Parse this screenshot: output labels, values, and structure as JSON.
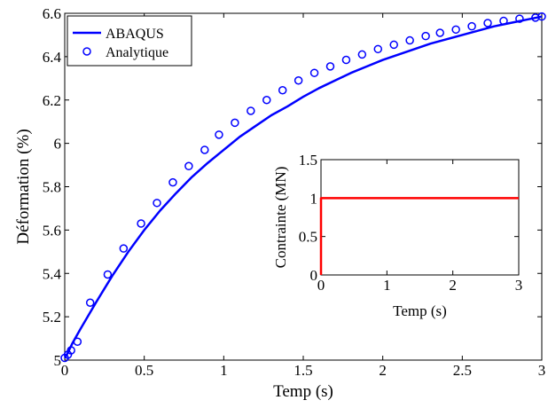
{
  "chart_data": [
    {
      "type": "line",
      "xlabel": "Temp (s)",
      "ylabel": "Déformation (%)",
      "xlim": [
        0,
        3
      ],
      "ylim": [
        5,
        6.6
      ],
      "xticks": [
        "0",
        "0.5",
        "1",
        "1.5",
        "2",
        "2.5",
        "3"
      ],
      "yticks": [
        "5",
        "5.2",
        "5.4",
        "5.6",
        "5.8",
        "6",
        "6.2",
        "6.4",
        "6.6"
      ],
      "legend_position": "top-left",
      "series": [
        {
          "name": "ABAQUS",
          "style": "line",
          "color": "#0000ff",
          "x": [
            0,
            0.01,
            0.02,
            0.05,
            0.1,
            0.2,
            0.3,
            0.4,
            0.5,
            0.6,
            0.7,
            0.8,
            0.9,
            1.0,
            1.1,
            1.2,
            1.3,
            1.4,
            1.5,
            1.6,
            1.7,
            1.8,
            1.9,
            2.0,
            2.1,
            2.2,
            2.3,
            2.4,
            2.5,
            2.6,
            2.7,
            2.8,
            2.9,
            3.0
          ],
          "y": [
            5.01,
            5.02,
            5.035,
            5.08,
            5.145,
            5.27,
            5.39,
            5.5,
            5.6,
            5.69,
            5.77,
            5.845,
            5.91,
            5.97,
            6.03,
            6.08,
            6.13,
            6.17,
            6.215,
            6.255,
            6.29,
            6.325,
            6.355,
            6.385,
            6.41,
            6.435,
            6.46,
            6.48,
            6.5,
            6.52,
            6.54,
            6.555,
            6.57,
            6.585
          ]
        },
        {
          "name": "Analytique",
          "style": "markers",
          "marker": "circle",
          "color": "#0000ff",
          "x": [
            0,
            0.02,
            0.04,
            0.08,
            0.16,
            0.27,
            0.37,
            0.48,
            0.58,
            0.68,
            0.78,
            0.88,
            0.97,
            1.07,
            1.17,
            1.27,
            1.37,
            1.47,
            1.57,
            1.67,
            1.77,
            1.87,
            1.97,
            2.07,
            2.17,
            2.27,
            2.36,
            2.46,
            2.56,
            2.66,
            2.76,
            2.86,
            2.96,
            3.0
          ],
          "y": [
            5.01,
            5.025,
            5.045,
            5.085,
            5.265,
            5.395,
            5.515,
            5.63,
            5.725,
            5.82,
            5.895,
            5.97,
            6.04,
            6.095,
            6.15,
            6.2,
            6.245,
            6.29,
            6.325,
            6.355,
            6.385,
            6.41,
            6.435,
            6.455,
            6.475,
            6.495,
            6.51,
            6.525,
            6.54,
            6.555,
            6.565,
            6.575,
            6.58,
            6.585
          ]
        }
      ]
    },
    {
      "type": "line",
      "xlabel": "Temp (s)",
      "ylabel": "Contrainte (MN)",
      "xlim": [
        0,
        3
      ],
      "ylim": [
        0,
        1.5
      ],
      "xticks": [
        "0",
        "1",
        "2",
        "3"
      ],
      "yticks": [
        "0",
        "0.5",
        "1",
        "1.5"
      ],
      "series": [
        {
          "style": "line",
          "color": "#ff0000",
          "x": [
            0,
            0,
            3
          ],
          "y": [
            0,
            1,
            1
          ]
        }
      ]
    }
  ]
}
